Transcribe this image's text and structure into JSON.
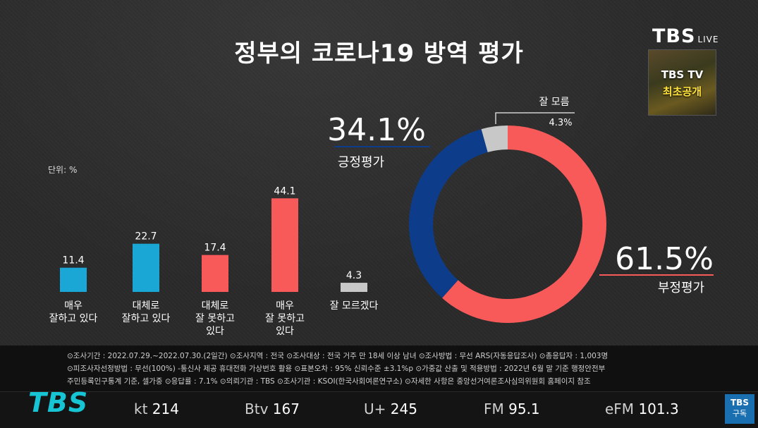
{
  "title": "정부의 코로나19 방역 평가",
  "logo": {
    "brand": "TBS",
    "live": "LIVE"
  },
  "promo": {
    "line1": "TBS TV",
    "line2": "최초공개"
  },
  "unit_label": "단위: %",
  "chart_data": [
    {
      "type": "bar",
      "categories": [
        "매우\n잘하고 있다",
        "대체로\n잘하고 있다",
        "대체로\n잘 못하고\n있다",
        "매우\n잘 못하고\n있다",
        "잘 모르겠다"
      ],
      "values": [
        11.4,
        22.7,
        17.4,
        44.1,
        4.3
      ],
      "colors": [
        "#1aa7d6",
        "#1aa7d6",
        "#f85a5a",
        "#f85a5a",
        "#c8c8c8"
      ],
      "ylim": [
        0,
        50
      ]
    },
    {
      "type": "pie",
      "donut": true,
      "slices": [
        {
          "label": "부정평가",
          "value": 61.5,
          "display": "61.5%",
          "color": "#f85a5a"
        },
        {
          "label": "긍정평가",
          "value": 34.1,
          "display": "34.1%",
          "color": "#0d3d8a"
        },
        {
          "label": "잘 모름",
          "value": 4.3,
          "display": "4.3%",
          "color": "#c8c8c8"
        }
      ]
    }
  ],
  "info": {
    "row1": "⊙조사기간 : 2022.07.29.~2022.07.30.(2일간)  ⊙조사지역 : 전국  ⊙조사대상 : 전국 거주 만 18세 이상 남녀  ⊙조사방법 : 무선 ARS(자동응답조사)  ⊙총응답자 : 1,003명",
    "row2": "⊙피조사자선정방법 : 무선(100%) -통신사 제공 휴대전화 가상번호 활용  ⊙표본오차 : 95% 신뢰수준 ±3.1%p  ⊙가중값 산출 및 적용방법 : 2022년 6월 말 기준 행정안전부",
    "row3": "주민등록인구통계 기준, 셀가중  ⊙응답률 : 7.1%  ⊙의뢰기관 : TBS  ⊙조사기관 : KSOI(한국사회여론연구소)  ⊙자세한 사항은 중앙선거여론조사심의위원회 홈페이지 참조"
  },
  "ticker": {
    "brand": "TBS",
    "channels": [
      {
        "name": "kt",
        "num": "214"
      },
      {
        "name": "Btv",
        "num": "167"
      },
      {
        "name": "U+",
        "num": "245"
      },
      {
        "name": "FM",
        "num": "95.1"
      },
      {
        "name": "eFM",
        "num": "101.3"
      }
    ],
    "subscribe_brand": "TBS",
    "subscribe_label": "구독"
  }
}
